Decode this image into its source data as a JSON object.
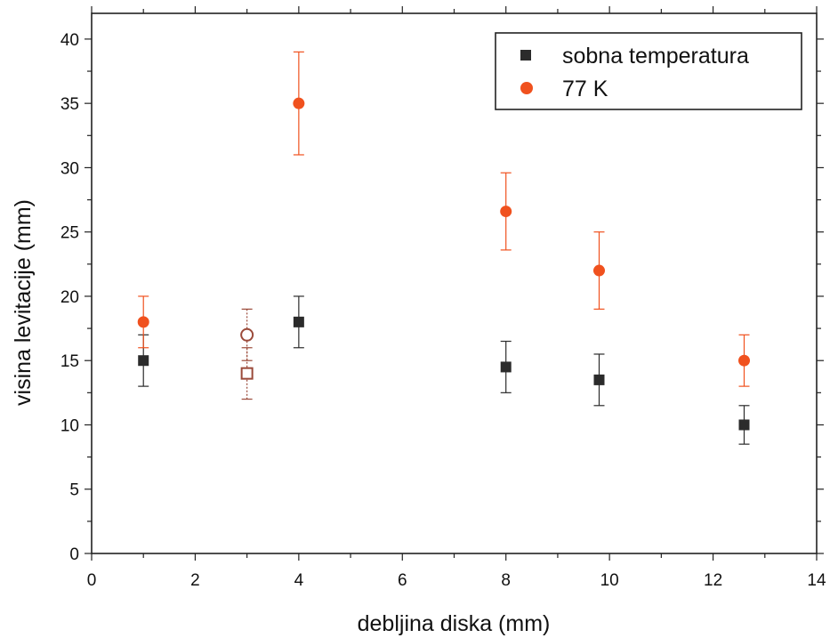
{
  "chart_data": {
    "type": "scatter",
    "title": "",
    "xlabel": "debljina diska (mm)",
    "ylabel": "visina levitacije (mm)",
    "xlim": [
      0,
      14
    ],
    "ylim": [
      0,
      42
    ],
    "x_ticks": [
      0,
      2,
      4,
      6,
      8,
      10,
      12,
      14
    ],
    "y_ticks": [
      0,
      5,
      10,
      15,
      20,
      25,
      30,
      35,
      40
    ],
    "grid": false,
    "legend_position": "top-right",
    "series": [
      {
        "name": "sobna temperatura",
        "marker": "square",
        "color": "#2b2b2b",
        "points": [
          {
            "x": 1.0,
            "y": 15.0,
            "err_low": 13.0,
            "err_high": 17.0,
            "hollow": false
          },
          {
            "x": 3.0,
            "y": 14.0,
            "err_low": 12.0,
            "err_high": 16.0,
            "hollow": true,
            "color": "#9b4a3a"
          },
          {
            "x": 4.0,
            "y": 18.0,
            "err_low": 16.0,
            "err_high": 20.0,
            "hollow": false
          },
          {
            "x": 8.0,
            "y": 14.5,
            "err_low": 12.5,
            "err_high": 16.5,
            "hollow": false
          },
          {
            "x": 9.8,
            "y": 13.5,
            "err_low": 11.5,
            "err_high": 15.5,
            "hollow": false
          },
          {
            "x": 12.6,
            "y": 10.0,
            "err_low": 8.5,
            "err_high": 11.5,
            "hollow": false
          }
        ]
      },
      {
        "name": "77 K",
        "marker": "circle",
        "color": "#f0511e",
        "points": [
          {
            "x": 1.0,
            "y": 18.0,
            "err_low": 16.0,
            "err_high": 20.0,
            "hollow": false
          },
          {
            "x": 3.0,
            "y": 17.0,
            "err_low": 15.0,
            "err_high": 19.0,
            "hollow": true,
            "color": "#9b4a3a"
          },
          {
            "x": 4.0,
            "y": 35.0,
            "err_low": 31.0,
            "err_high": 39.0,
            "hollow": false
          },
          {
            "x": 8.0,
            "y": 26.6,
            "err_low": 23.6,
            "err_high": 29.6,
            "hollow": false
          },
          {
            "x": 9.8,
            "y": 22.0,
            "err_low": 19.0,
            "err_high": 25.0,
            "hollow": false
          },
          {
            "x": 12.6,
            "y": 15.0,
            "err_low": 13.0,
            "err_high": 17.0,
            "hollow": false
          }
        ]
      }
    ]
  }
}
